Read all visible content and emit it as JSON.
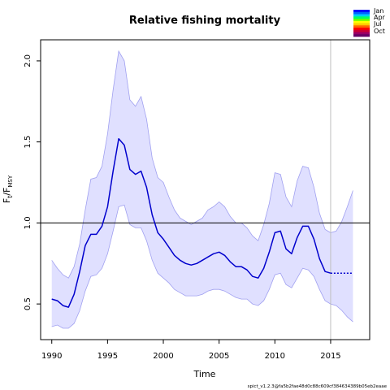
{
  "chart_data": {
    "type": "line",
    "title": "Relative fishing mortality",
    "xlabel": "Time",
    "ylabel": {
      "F": "F",
      "sub_t": "t",
      "sep": "/F",
      "sub_msy": "MSY"
    },
    "xlim": [
      1989,
      2018.5
    ],
    "ylim": [
      0.28,
      2.13
    ],
    "xticks": [
      1990,
      1995,
      2000,
      2005,
      2010,
      2015
    ],
    "xtick_labels": [
      "1990",
      "1995",
      "2000",
      "2005",
      "2010",
      "2015"
    ],
    "yticks": [
      0.5,
      1.0,
      1.5,
      2.0
    ],
    "ytick_labels": [
      "0.5",
      "1.0",
      "1.5",
      "2.0"
    ],
    "reference_line_y": 1.0,
    "vertical_line_x": 2015,
    "grid": false,
    "colors": {
      "estimate": "#0000cd",
      "band_fill": "#e0e0ff",
      "band_edge": "#a0a0f0",
      "reference": "#000000",
      "vertical": "#bfbfbf"
    },
    "series": [
      {
        "x": [
          1990.0,
          1990.5,
          1991.0,
          1991.5,
          1992.0,
          1992.5,
          1993.0,
          1993.5,
          1994.0,
          1994.5,
          1995.0,
          1995.5,
          1996.0,
          1996.5,
          1997.0,
          1997.5,
          1998.0,
          1998.5,
          1999.0,
          1999.5,
          2000.0,
          2000.5,
          2001.0,
          2001.5,
          2002.0,
          2002.5,
          2003.0,
          2003.5,
          2004.0,
          2004.5,
          2005.0,
          2005.5,
          2006.0,
          2006.5,
          2007.0,
          2007.5,
          2008.0,
          2008.5,
          2009.0,
          2009.5,
          2010.0,
          2010.5,
          2011.0,
          2011.5,
          2012.0,
          2012.5,
          2013.0,
          2013.5,
          2014.0,
          2014.5,
          2015.0
        ],
        "values": [
          0.53,
          0.52,
          0.49,
          0.48,
          0.56,
          0.7,
          0.86,
          0.93,
          0.93,
          0.98,
          1.1,
          1.32,
          1.52,
          1.48,
          1.33,
          1.3,
          1.32,
          1.22,
          1.05,
          0.94,
          0.9,
          0.85,
          0.8,
          0.77,
          0.75,
          0.74,
          0.75,
          0.77,
          0.79,
          0.81,
          0.82,
          0.8,
          0.76,
          0.73,
          0.73,
          0.71,
          0.67,
          0.66,
          0.72,
          0.82,
          0.94,
          0.95,
          0.84,
          0.81,
          0.91,
          0.98,
          0.98,
          0.9,
          0.78,
          0.7,
          0.69
        ]
      },
      {
        "x": [
          2015.0,
          2015.5,
          2016.0,
          2016.5,
          2017.0
        ],
        "values": [
          0.69,
          0.69,
          0.69,
          0.69,
          0.69
        ]
      }
    ],
    "band": {
      "x": [
        1990.0,
        1990.5,
        1991.0,
        1991.5,
        1992.0,
        1992.5,
        1993.0,
        1993.5,
        1994.0,
        1994.5,
        1995.0,
        1995.5,
        1996.0,
        1996.5,
        1997.0,
        1997.5,
        1998.0,
        1998.5,
        1999.0,
        1999.5,
        2000.0,
        2000.5,
        2001.0,
        2001.5,
        2002.0,
        2002.5,
        2003.0,
        2003.5,
        2004.0,
        2004.5,
        2005.0,
        2005.5,
        2006.0,
        2006.5,
        2007.0,
        2007.5,
        2008.0,
        2008.5,
        2009.0,
        2009.5,
        2010.0,
        2010.5,
        2011.0,
        2011.5,
        2012.0,
        2012.5,
        2013.0,
        2013.5,
        2014.0,
        2014.5,
        2015.0,
        2015.5,
        2016.0,
        2016.5,
        2017.0
      ],
      "lower": [
        0.36,
        0.37,
        0.35,
        0.35,
        0.38,
        0.46,
        0.58,
        0.67,
        0.68,
        0.72,
        0.81,
        0.95,
        1.1,
        1.11,
        0.99,
        0.97,
        0.97,
        0.89,
        0.77,
        0.69,
        0.66,
        0.63,
        0.59,
        0.57,
        0.55,
        0.55,
        0.55,
        0.56,
        0.58,
        0.59,
        0.59,
        0.58,
        0.56,
        0.54,
        0.53,
        0.53,
        0.5,
        0.49,
        0.52,
        0.59,
        0.68,
        0.69,
        0.62,
        0.6,
        0.66,
        0.72,
        0.71,
        0.67,
        0.59,
        0.52,
        0.5,
        0.49,
        0.46,
        0.42,
        0.39
      ],
      "upper": [
        0.77,
        0.72,
        0.68,
        0.66,
        0.73,
        0.87,
        1.08,
        1.27,
        1.28,
        1.35,
        1.55,
        1.82,
        2.06,
        2.0,
        1.76,
        1.72,
        1.78,
        1.64,
        1.4,
        1.28,
        1.25,
        1.16,
        1.08,
        1.03,
        1.01,
        0.99,
        1.01,
        1.03,
        1.08,
        1.1,
        1.13,
        1.1,
        1.04,
        1.0,
        1.0,
        0.97,
        0.92,
        0.89,
        0.99,
        1.12,
        1.31,
        1.3,
        1.16,
        1.1,
        1.26,
        1.35,
        1.34,
        1.22,
        1.06,
        0.96,
        0.94,
        0.95,
        1.01,
        1.1,
        1.2
      ]
    },
    "legend": {
      "placement": "top-right",
      "labels": [
        "Jan",
        "Apr",
        "Jul",
        "Oct"
      ],
      "colors": [
        "#0000ff",
        "#0066ff",
        "#00ccff",
        "#00ff66",
        "#66ff00",
        "#ffff00",
        "#ffcc00",
        "#ff6600",
        "#ff0000",
        "#cc0033",
        "#990066",
        "#660066"
      ]
    }
  },
  "footer_text": "spict_v1.2.3@fa5b2fae48d0c88c609cf384634389b05eb2eaae"
}
